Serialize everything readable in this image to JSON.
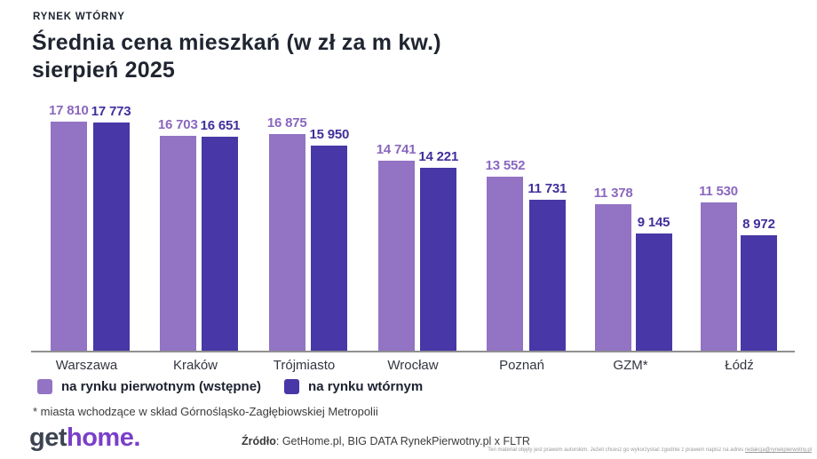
{
  "kicker": "RYNEK WTÓRNY",
  "title_line1": "Średnia cena mieszkań (w zł za m kw.)",
  "title_line2": "sierpień 2025",
  "chart_data": {
    "type": "bar",
    "title": "Średnia cena mieszkań (w zł za m kw.) sierpień 2025",
    "categories": [
      "Warszawa",
      "Kraków",
      "Trójmiasto",
      "Wrocław",
      "Poznań",
      "GZM*",
      "Łódź"
    ],
    "series": [
      {
        "name": "na rynku pierwotnym (wstępne)",
        "color": "#9273C4",
        "label_color": "#8A67BF",
        "values": [
          17810,
          16703,
          16875,
          14741,
          13552,
          11378,
          11530
        ]
      },
      {
        "name": "na rynku wtórnym",
        "color": "#4837A6",
        "label_color": "#3F2F9C",
        "values": [
          17773,
          16651,
          15950,
          14221,
          11731,
          9145,
          8972
        ]
      }
    ],
    "ylim": [
      0,
      17810
    ],
    "grid": false,
    "legend_position": "bottom",
    "value_labels": "above-bars, thousands separated by space"
  },
  "footnote": "* miasta wchodzące w skład Górnośląsko-Zagłębiowskiej Metropolii",
  "footer": {
    "logo_get": "get",
    "logo_home": "home.",
    "source_label": "Źródło",
    "source_rest": ": GetHome.pl, BIG DATA RynekPierwotny.pl x FLTR",
    "copyright_text": "Ten materiał objęty jest prawem autorskim. Jeżeli chcesz go wykorzystać zgodnie z prawem napisz na adres ",
    "copyright_link": "redakcja@rynekpierwotny.pl"
  },
  "colors": {
    "primary_light_purple": "#9273C4",
    "primary_dark_purple": "#4837A6",
    "heading": "#1F2430",
    "axis": "#8F8F8F",
    "logo_purple": "#7A3FC9",
    "logo_dark": "#3B4450"
  }
}
